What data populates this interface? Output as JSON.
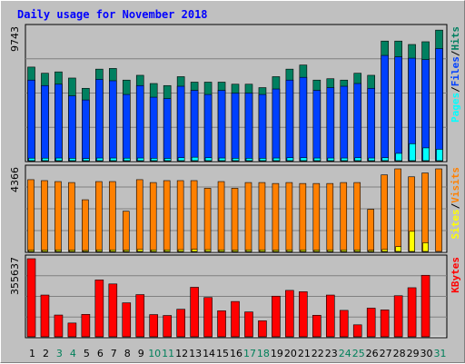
{
  "chart_data": {
    "type": "bar",
    "title": "Daily usage for November 2018",
    "categories": [
      "1",
      "2",
      "3",
      "4",
      "5",
      "6",
      "7",
      "8",
      "9",
      "10",
      "11",
      "12",
      "13",
      "14",
      "15",
      "16",
      "17",
      "18",
      "19",
      "20",
      "21",
      "22",
      "23",
      "24",
      "25",
      "26",
      "27",
      "28",
      "29",
      "30",
      "31"
    ],
    "weekend_categories": [
      "3",
      "4",
      "10",
      "11",
      "17",
      "18",
      "24",
      "25",
      "31"
    ],
    "panels": [
      {
        "id": "hits-files-pages",
        "max_label": "9743",
        "ylim": [
          0,
          9743
        ],
        "legend_right": [
          "Pages",
          "/",
          "Files",
          "/",
          "Hits"
        ],
        "series": [
          {
            "name": "Hits",
            "color": "#008060",
            "values": [
              6900,
              6450,
              6550,
              6100,
              5350,
              6750,
              6800,
              5950,
              6300,
              5700,
              5550,
              6200,
              5800,
              5800,
              5800,
              5650,
              5650,
              5400,
              6200,
              6750,
              7050,
              5950,
              6050,
              5950,
              6450,
              6300,
              8800,
              8800,
              8550,
              8750,
              9600
            ]
          },
          {
            "name": "Files",
            "color": "#0040ff",
            "values": [
              5950,
              5550,
              5650,
              4800,
              4500,
              6000,
              5900,
              4900,
              5550,
              4700,
              4600,
              5500,
              5200,
              4900,
              5200,
              5000,
              5000,
              4900,
              5300,
              5950,
              6150,
              5200,
              5400,
              5500,
              5700,
              5350,
              7750,
              7650,
              7550,
              7450,
              8250
            ]
          },
          {
            "name": "Pages",
            "color": "#00ffff",
            "values": [
              250,
              250,
              260,
              240,
              220,
              260,
              260,
              250,
              260,
              240,
              230,
              280,
              320,
              280,
              260,
              240,
              240,
              240,
              260,
              280,
              280,
              260,
              260,
              260,
              280,
              260,
              280,
              600,
              1300,
              1000,
              900
            ]
          }
        ]
      },
      {
        "id": "visits-sites",
        "max_label": "4366",
        "ylim": [
          0,
          4366
        ],
        "legend_right": [
          "Sites",
          "/",
          "Visits"
        ],
        "series": [
          {
            "name": "Visits",
            "color": "#ff8000",
            "values": [
              3800,
              3750,
              3700,
              3650,
              2750,
              3700,
              3700,
              2150,
              3800,
              3650,
              3750,
              3750,
              3750,
              3350,
              3700,
              3350,
              3650,
              3650,
              3600,
              3650,
              3600,
              3600,
              3600,
              3650,
              3650,
              2250,
              4050,
              4366,
              3950,
              4150,
              4366
            ]
          },
          {
            "name": "Sites",
            "color": "#ffff00",
            "values": [
              120,
              120,
              130,
              120,
              100,
              130,
              130,
              120,
              150,
              130,
              130,
              140,
              160,
              140,
              130,
              120,
              130,
              130,
              120,
              130,
              130,
              120,
              130,
              130,
              130,
              110,
              150,
              300,
              1100,
              500,
              0
            ]
          }
        ]
      },
      {
        "id": "kbytes",
        "max_label": "355637",
        "ylim": [
          0,
          355637
        ],
        "legend_right": [
          "KBytes"
        ],
        "series": [
          {
            "name": "KBytes",
            "color": "#ff0000",
            "values": [
              355637,
              192000,
              102000,
              66000,
              105000,
              260000,
              242000,
              157000,
              194000,
              104000,
              100000,
              128000,
              227000,
              181000,
              121000,
              163000,
              116000,
              76000,
              187000,
              213000,
              207000,
              101000,
              192000,
              123000,
              58000,
              133000,
              125000,
              189000,
              225000,
              281000,
              0
            ]
          }
        ]
      }
    ]
  }
}
